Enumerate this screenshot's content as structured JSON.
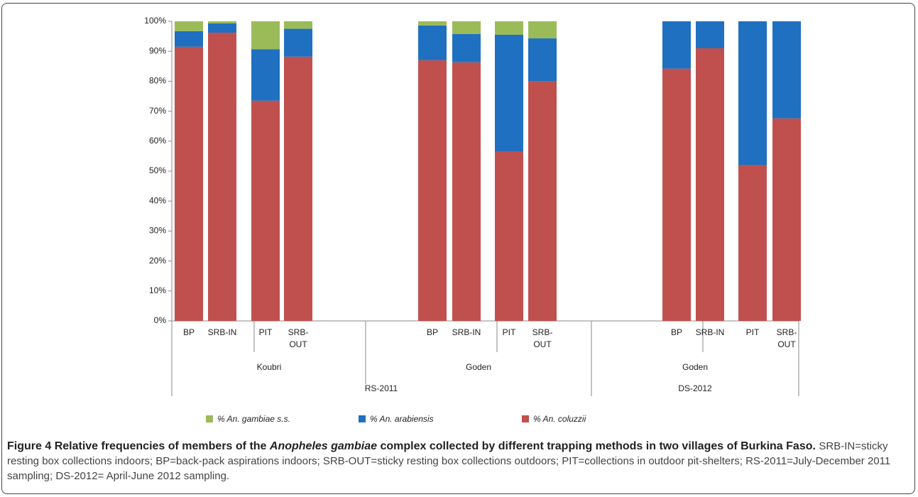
{
  "chart_data": {
    "type": "stacked-bar",
    "categories": [
      "BP",
      "SRB-IN",
      "PIT",
      "SRB-OUT",
      "BP",
      "SRB-IN",
      "PIT",
      "SRB-OUT",
      "BP",
      "SRB-IN",
      "PIT",
      "SRB-OUT"
    ],
    "sites": [
      "Koubri",
      "Goden",
      "Goden"
    ],
    "seasons": [
      "RS-2011",
      "DS-2012"
    ],
    "series": [
      {
        "name": "% An. coluzzii",
        "color": "#c0504d",
        "values": [
          91.5,
          96.2,
          73.5,
          88.2,
          87.0,
          86.3,
          56.5,
          80.0,
          84.2,
          91.0,
          52.0,
          67.6
        ]
      },
      {
        "name": "% An. arabiensis",
        "color": "#1f70c1",
        "values": [
          5.2,
          3.1,
          17.2,
          9.3,
          11.6,
          9.5,
          39.0,
          14.3,
          15.8,
          9.0,
          48.0,
          32.4
        ]
      },
      {
        "name": "% An. gambiae s.s.",
        "color": "#9bbb59",
        "values": [
          3.3,
          0.7,
          9.3,
          2.5,
          1.4,
          4.2,
          4.5,
          5.7,
          0,
          0,
          0,
          0
        ]
      }
    ],
    "ylim": [
      0,
      100
    ],
    "yticks": [
      {
        "value": 0,
        "label": "0%"
      },
      {
        "value": 10,
        "label": "10%"
      },
      {
        "value": 20,
        "label": "20%"
      },
      {
        "value": 30,
        "label": "30%"
      },
      {
        "value": 40,
        "label": "40%"
      },
      {
        "value": 50,
        "label": "50%"
      },
      {
        "value": 60,
        "label": "60%"
      },
      {
        "value": 70,
        "label": "70%"
      },
      {
        "value": 80,
        "label": "80%"
      },
      {
        "value": 90,
        "label": "90%"
      },
      {
        "value": 100,
        "label": "100%"
      }
    ],
    "legend": "bottom"
  },
  "caption": {
    "label": "Figure 4",
    "title_parts": [
      "Relative frequencies of members of the ",
      "Anopheles gambiae",
      " complex collected by different trapping methods in two villages of Burkina Faso."
    ],
    "text": "SRB-IN=sticky resting box collections indoors; BP=back-pack aspirations indoors; SRB-OUT=sticky resting box collections outdoors; PIT=collections in outdoor pit-shelters; RS-2011=July-December 2011 sampling; DS-2012= April-June 2012 sampling."
  }
}
